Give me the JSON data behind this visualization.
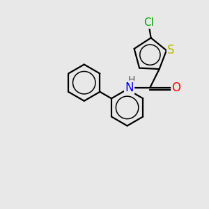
{
  "background_color": "#e8e8e8",
  "bond_color": "#000000",
  "bond_width": 1.6,
  "atoms": {
    "S": {
      "color": "#b8b800"
    },
    "Cl": {
      "color": "#00aa00"
    },
    "O": {
      "color": "#ff0000"
    },
    "N": {
      "color": "#0000ff"
    },
    "H": {
      "color": "#555555"
    }
  },
  "label_fontsize": 11,
  "figsize": [
    3.0,
    3.0
  ],
  "dpi": 100
}
